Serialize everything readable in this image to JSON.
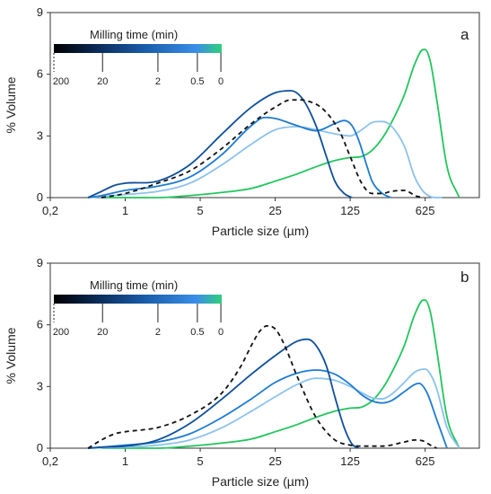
{
  "chart_data": [
    {
      "type": "line",
      "panel_label": "a",
      "xlabel": "Particle size (µm)",
      "ylabel": "% Volume",
      "x_scale": "log",
      "xlim": [
        0.2,
        2000
      ],
      "ylim": [
        0,
        9
      ],
      "xticks": [
        0.2,
        1,
        5,
        25,
        125,
        625
      ],
      "xtick_labels": [
        "0,2",
        "1",
        "5",
        "25",
        "125",
        "625"
      ],
      "yticks": [
        0,
        3,
        6,
        9
      ],
      "ytick_labels": [
        "0",
        "3",
        "6",
        "9"
      ],
      "grid": false,
      "colorbar": {
        "title": "Milling time (min)",
        "tick_labels": [
          "200",
          "20",
          "2",
          "0.5",
          "0"
        ],
        "colors": [
          "#000000",
          "#0a2a55",
          "#1a5dab",
          "#3a8ee8",
          "#2fd07a"
        ]
      },
      "series": [
        {
          "milling_time": "0",
          "color": "#22c55e",
          "dashed": false,
          "x": [
            0.6,
            1,
            2,
            4,
            8,
            15,
            25,
            40,
            60,
            90,
            125,
            160,
            200,
            250,
            300,
            400,
            500,
            600,
            625,
            700,
            800,
            1000,
            1300
          ],
          "y": [
            0,
            0,
            0,
            0.1,
            0.25,
            0.45,
            0.8,
            1.15,
            1.5,
            1.8,
            1.95,
            2.0,
            2.3,
            2.9,
            3.6,
            5.0,
            6.5,
            7.2,
            7.2,
            6.6,
            4.8,
            1.5,
            0
          ]
        },
        {
          "milling_time": "0.5",
          "color": "#8cc2ec",
          "dashed": false,
          "x": [
            0.45,
            0.6,
            1,
            2,
            4,
            8,
            15,
            25,
            40,
            60,
            90,
            125,
            160,
            200,
            250,
            300,
            400,
            500,
            600,
            700,
            900
          ],
          "y": [
            0,
            0.05,
            0.15,
            0.3,
            0.7,
            1.6,
            2.6,
            3.3,
            3.45,
            3.3,
            3.1,
            3.0,
            3.3,
            3.65,
            3.7,
            3.5,
            2.5,
            1.0,
            0.3,
            0.05,
            0
          ]
        },
        {
          "milling_time": "2",
          "color": "#1e7bd0",
          "dashed": false,
          "x": [
            0.45,
            0.6,
            1,
            2,
            4,
            8,
            15,
            20,
            25,
            40,
            60,
            90,
            110,
            130,
            150,
            180,
            200,
            250,
            300
          ],
          "y": [
            0,
            0.1,
            0.35,
            0.55,
            1.0,
            2.1,
            3.5,
            3.9,
            3.85,
            3.5,
            3.25,
            3.6,
            3.75,
            3.5,
            2.8,
            1.5,
            0.8,
            0.2,
            0
          ]
        },
        {
          "milling_time": "20",
          "color": "#0f4f9a",
          "dashed": false,
          "x": [
            0.45,
            0.6,
            0.8,
            1,
            2,
            4,
            8,
            15,
            25,
            35,
            45,
            60,
            75,
            90,
            110,
            130
          ],
          "y": [
            0,
            0.3,
            0.6,
            0.7,
            0.8,
            1.6,
            3.1,
            4.4,
            5.1,
            5.2,
            4.8,
            3.5,
            2.0,
            0.8,
            0.2,
            0
          ]
        },
        {
          "milling_time": "200",
          "color": "#111111",
          "dashed": true,
          "x": [
            0.6,
            1,
            2,
            4,
            8,
            15,
            25,
            35,
            50,
            70,
            100,
            125,
            160,
            200,
            250,
            300,
            400,
            450,
            500,
            600
          ],
          "y": [
            0,
            0.2,
            0.7,
            1.3,
            2.4,
            3.6,
            4.4,
            4.75,
            4.7,
            4.3,
            3.2,
            2.0,
            0.7,
            0.2,
            0.2,
            0.3,
            0.35,
            0.25,
            0.1,
            0
          ]
        }
      ]
    },
    {
      "type": "line",
      "panel_label": "b",
      "xlabel": "Particle size (µm)",
      "ylabel": "% Volume",
      "x_scale": "log",
      "xlim": [
        0.2,
        2000
      ],
      "ylim": [
        0,
        9
      ],
      "xticks": [
        0.2,
        1,
        5,
        25,
        125,
        625
      ],
      "xtick_labels": [
        "0,2",
        "1",
        "5",
        "25",
        "125",
        "625"
      ],
      "yticks": [
        0,
        3,
        6,
        9
      ],
      "ytick_labels": [
        "0",
        "3",
        "6",
        "9"
      ],
      "grid": false,
      "colorbar": {
        "title": "Milling time (min)",
        "tick_labels": [
          "200",
          "20",
          "2",
          "0.5",
          "0"
        ],
        "colors": [
          "#000000",
          "#0a2a55",
          "#1a5dab",
          "#3a8ee8",
          "#2fd07a"
        ]
      },
      "series": [
        {
          "milling_time": "0",
          "color": "#22c55e",
          "dashed": false,
          "x": [
            0.6,
            1,
            2,
            4,
            8,
            15,
            25,
            40,
            60,
            90,
            125,
            160,
            200,
            250,
            300,
            400,
            500,
            600,
            625,
            700,
            800,
            1000,
            1300
          ],
          "y": [
            0,
            0,
            0,
            0.1,
            0.25,
            0.45,
            0.8,
            1.15,
            1.5,
            1.8,
            1.95,
            2.0,
            2.3,
            2.9,
            3.6,
            5.0,
            6.5,
            7.2,
            7.2,
            6.6,
            4.8,
            1.5,
            0
          ]
        },
        {
          "milling_time": "0.5",
          "color": "#8cc2ec",
          "dashed": false,
          "x": [
            0.45,
            0.6,
            1,
            2,
            4,
            8,
            15,
            25,
            40,
            60,
            90,
            125,
            160,
            200,
            250,
            300,
            400,
            500,
            625,
            700,
            800,
            1000,
            1300
          ],
          "y": [
            0,
            0.02,
            0.05,
            0.15,
            0.4,
            1.0,
            1.8,
            2.5,
            3.1,
            3.4,
            3.3,
            3.0,
            2.7,
            2.45,
            2.4,
            2.6,
            3.2,
            3.7,
            3.85,
            3.6,
            2.9,
            1.0,
            0
          ]
        },
        {
          "milling_time": "2",
          "color": "#1e7bd0",
          "dashed": false,
          "x": [
            0.45,
            0.6,
            1,
            2,
            4,
            8,
            15,
            25,
            40,
            60,
            90,
            125,
            160,
            200,
            250,
            300,
            400,
            500,
            550,
            650,
            800,
            1000
          ],
          "y": [
            0,
            0.05,
            0.15,
            0.3,
            0.7,
            1.5,
            2.4,
            3.2,
            3.65,
            3.8,
            3.6,
            3.1,
            2.6,
            2.3,
            2.2,
            2.3,
            2.75,
            3.1,
            3.15,
            2.7,
            1.4,
            0
          ]
        },
        {
          "milling_time": "20",
          "color": "#0f4f9a",
          "dashed": false,
          "x": [
            0.45,
            0.6,
            1,
            2,
            4,
            8,
            15,
            25,
            40,
            50,
            60,
            75,
            90,
            110,
            130,
            150
          ],
          "y": [
            0,
            0.05,
            0.1,
            0.4,
            1.2,
            2.4,
            3.6,
            4.5,
            5.2,
            5.3,
            5.0,
            4.0,
            2.5,
            1.0,
            0.2,
            0
          ]
        },
        {
          "milling_time": "200",
          "color": "#111111",
          "dashed": true,
          "x": [
            0.45,
            0.6,
            0.8,
            1,
            1.5,
            2,
            4,
            8,
            12,
            15,
            18,
            21,
            25,
            30,
            40,
            60,
            90,
            125,
            160,
            250,
            400,
            500,
            600,
            700,
            800
          ],
          "y": [
            0,
            0.4,
            0.7,
            0.8,
            0.9,
            1.0,
            1.6,
            2.7,
            4.0,
            5.0,
            5.7,
            5.95,
            5.8,
            5.1,
            3.5,
            1.5,
            0.4,
            0.15,
            0.1,
            0.1,
            0.3,
            0.4,
            0.35,
            0.15,
            0
          ]
        }
      ]
    }
  ]
}
